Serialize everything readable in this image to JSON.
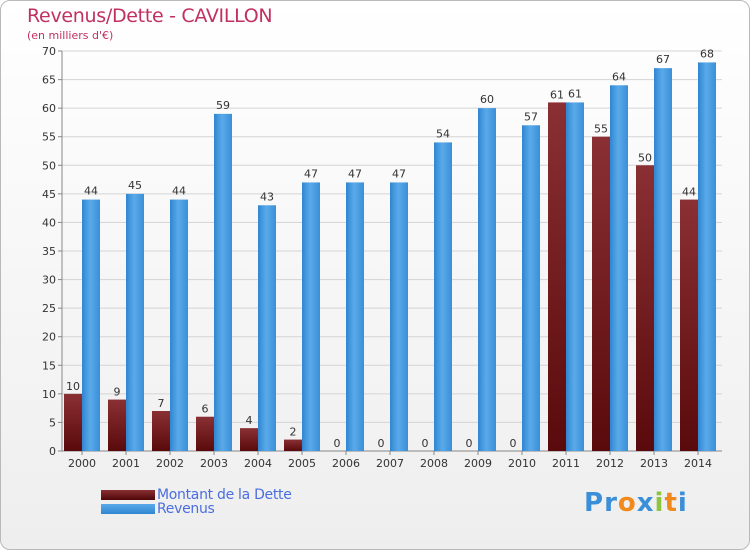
{
  "chart_data": {
    "type": "bar",
    "title": "Revenus/Dette - CAVILLON",
    "subtitle": "(en milliers d'€)",
    "categories": [
      "2000",
      "2001",
      "2002",
      "2003",
      "2004",
      "2005",
      "2006",
      "2007",
      "2008",
      "2009",
      "2010",
      "2011",
      "2012",
      "2013",
      "2014"
    ],
    "series": [
      {
        "name": "Montant de la Dette",
        "color": "#7a1f22",
        "values": [
          10,
          9,
          7,
          6,
          4,
          2,
          0,
          0,
          0,
          0,
          0,
          61,
          55,
          50,
          44
        ]
      },
      {
        "name": "Revenus",
        "color": "#4a9ee0",
        "values": [
          44,
          45,
          44,
          59,
          43,
          47,
          47,
          47,
          54,
          60,
          57,
          61,
          64,
          67,
          68
        ]
      }
    ],
    "ylim": [
      0,
      70
    ],
    "yticks": [
      0,
      5,
      10,
      15,
      20,
      25,
      30,
      35,
      40,
      45,
      50,
      55,
      60,
      65,
      70
    ],
    "grid": true,
    "legend_position": "bottom-left"
  },
  "logo": {
    "text": "Proxiti",
    "letters": [
      {
        "ch": "P",
        "color": "#3a8fd8"
      },
      {
        "ch": "r",
        "color": "#3a8fd8"
      },
      {
        "ch": "o",
        "color": "#f08a1c"
      },
      {
        "ch": "x",
        "color": "#3a8fd8"
      },
      {
        "ch": "i",
        "color": "#8cc63f"
      },
      {
        "ch": "t",
        "color": "#f08a1c"
      },
      {
        "ch": "i",
        "color": "#3a8fd8"
      }
    ]
  }
}
